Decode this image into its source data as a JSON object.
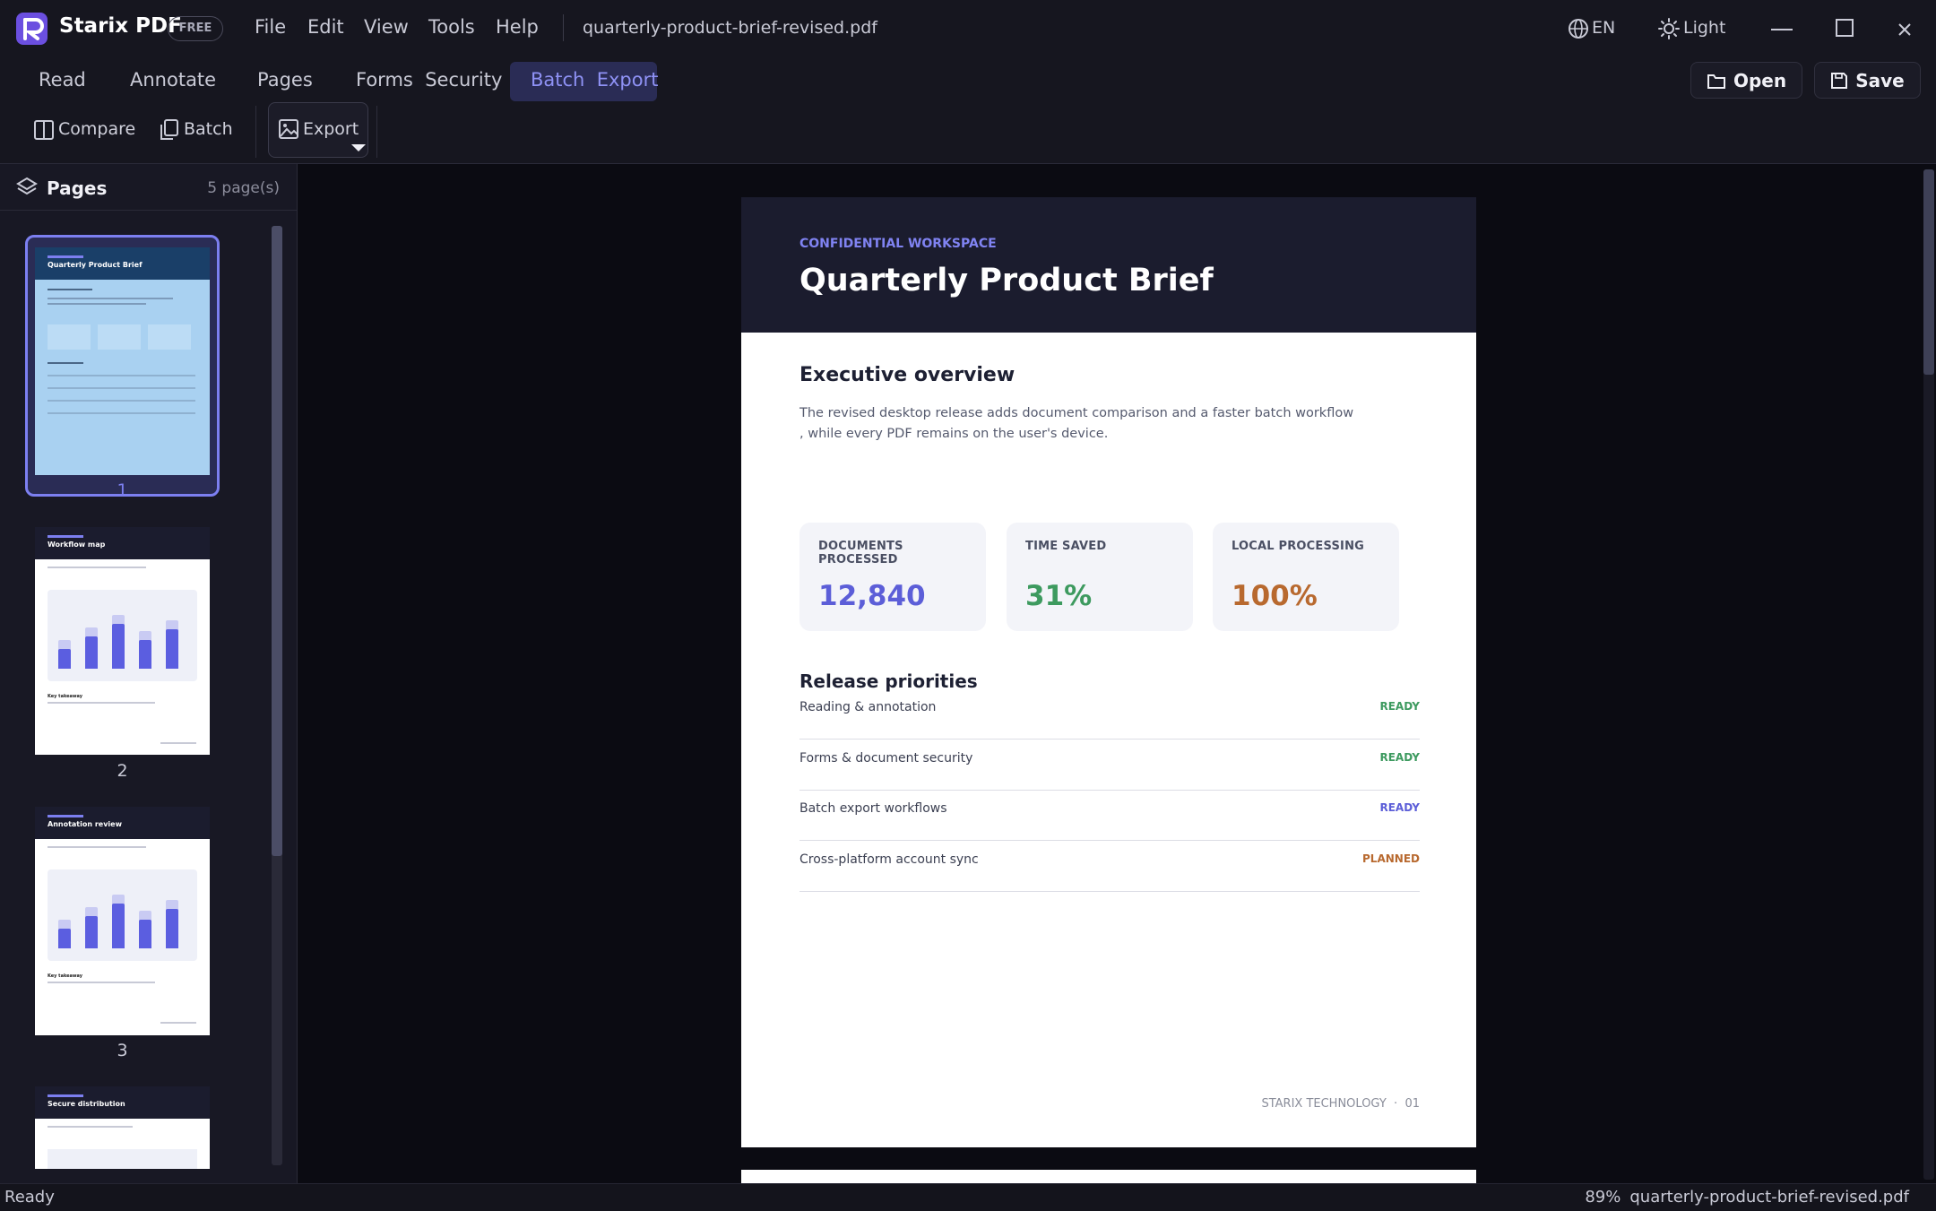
{
  "app": {
    "name": "Starix PDF",
    "badge": "FREE",
    "menu": [
      "File",
      "Edit",
      "View",
      "Tools",
      "Help"
    ],
    "file": "quarterly-product-brief-revised.pdf",
    "language": "EN",
    "theme": "Light"
  },
  "toolbar": {
    "tabs": [
      "Read",
      "Annotate",
      "Pages",
      "Forms  Security",
      "Batch  Export"
    ],
    "active_tab": 4,
    "tools": [
      "Compare",
      "Batch",
      "Export"
    ],
    "actions": [
      "Open",
      "Save"
    ]
  },
  "sidebar": {
    "title": "Pages",
    "count": "5 page(s)",
    "thumbnails": [
      {
        "label": "1",
        "title": "Quarterly Product Brief"
      },
      {
        "label": "2",
        "title": "Workflow map",
        "subtitle": "Key takeaway"
      },
      {
        "label": "3",
        "title": "Annotation review",
        "subtitle": "Key takeaway"
      },
      {
        "title": "Secure distribution"
      }
    ]
  },
  "document": {
    "eyebrow": "CONFIDENTIAL WORKSPACE",
    "title": "Quarterly Product Brief",
    "overview_heading": "Executive overview",
    "paragraph": [
      "The revised desktop release adds document comparison and a faster batch workflow",
      ", while every PDF remains on the user's device."
    ],
    "metrics": [
      {
        "label": "DOCUMENTS PROCESSED",
        "value": "12,840",
        "color": "#5c5ed8"
      },
      {
        "label": "TIME SAVED",
        "value": "31%",
        "color": "#3d9a5f"
      },
      {
        "label": "LOCAL PROCESSING",
        "value": "100%",
        "color": "#b8692f"
      }
    ],
    "priorities_heading": "Release priorities",
    "priorities": [
      {
        "name": "Reading & annotation",
        "status": "READY",
        "color": "#3d9a5f"
      },
      {
        "name": "Forms & document security",
        "status": "READY",
        "color": "#3d9a5f"
      },
      {
        "name": "Batch export workflows",
        "status": "READY",
        "color": "#5c5ed8"
      },
      {
        "name": "Cross-platform account sync",
        "status": "PLANNED",
        "color": "#b8692f"
      }
    ],
    "footer": "STARIX TECHNOLOGY  ·  01"
  },
  "status": {
    "left": "Ready",
    "zoom": "89%",
    "file": "quarterly-product-brief-revised.pdf"
  }
}
